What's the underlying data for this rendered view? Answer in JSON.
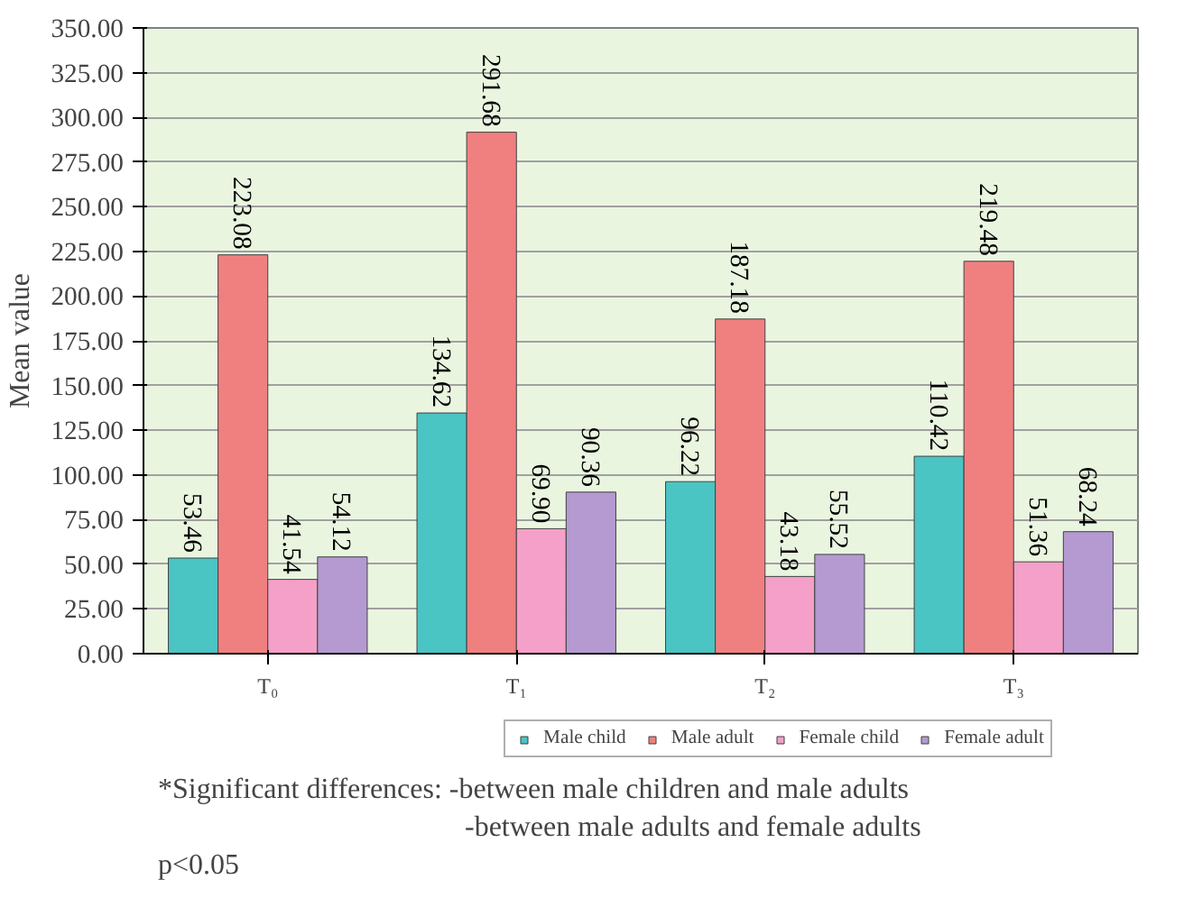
{
  "chart_data": {
    "type": "bar",
    "ylabel": "Mean value",
    "categories": [
      "T₀",
      "T₁",
      "T₂",
      "T₃"
    ],
    "series": [
      {
        "name": "Male child",
        "color": "#4bc4c4",
        "values": [
          53.46,
          134.62,
          96.22,
          110.42
        ],
        "value_labels": [
          "53.46",
          "134.62",
          "96.22",
          "110.42"
        ]
      },
      {
        "name": "Male adult",
        "color": "#f08080",
        "values": [
          223.08,
          291.68,
          187.18,
          219.48
        ],
        "value_labels": [
          "223.08",
          "291.68",
          "187.18",
          "219.48"
        ]
      },
      {
        "name": "Female child",
        "color": "#f4a0c8",
        "values": [
          41.54,
          69.9,
          43.18,
          51.36
        ],
        "value_labels": [
          "41.54",
          "69.90",
          "43.18",
          "51.36"
        ]
      },
      {
        "name": "Female adult",
        "color": "#b49ad0",
        "values": [
          54.12,
          90.36,
          55.52,
          68.24
        ],
        "value_labels": [
          "54.12",
          "90.36",
          "55.52",
          "68.24"
        ]
      }
    ],
    "ylim": [
      0,
      350
    ],
    "yticks": [
      {
        "value": 0,
        "label": "0.00"
      },
      {
        "value": 25,
        "label": "25.00"
      },
      {
        "value": 50,
        "label": "50.00"
      },
      {
        "value": 75,
        "label": "75.00"
      },
      {
        "value": 100,
        "label": "100.00"
      },
      {
        "value": 125,
        "label": "125.00"
      },
      {
        "value": 150,
        "label": "150.00"
      },
      {
        "value": 175,
        "label": "175.00"
      },
      {
        "value": 200,
        "label": "200.00"
      },
      {
        "value": 225,
        "label": "225.00"
      },
      {
        "value": 250,
        "label": "250.00"
      },
      {
        "value": 275,
        "label": "275.00"
      },
      {
        "value": 300,
        "label": "300.00"
      },
      {
        "value": 325,
        "label": "325.00"
      },
      {
        "value": 350,
        "label": "350.00"
      }
    ],
    "grid": "y",
    "legend": "bottom",
    "annotations": [
      "*Significant differences: -between male children and male adults",
      "-between male adults and female adults",
      "p<0.05"
    ]
  }
}
